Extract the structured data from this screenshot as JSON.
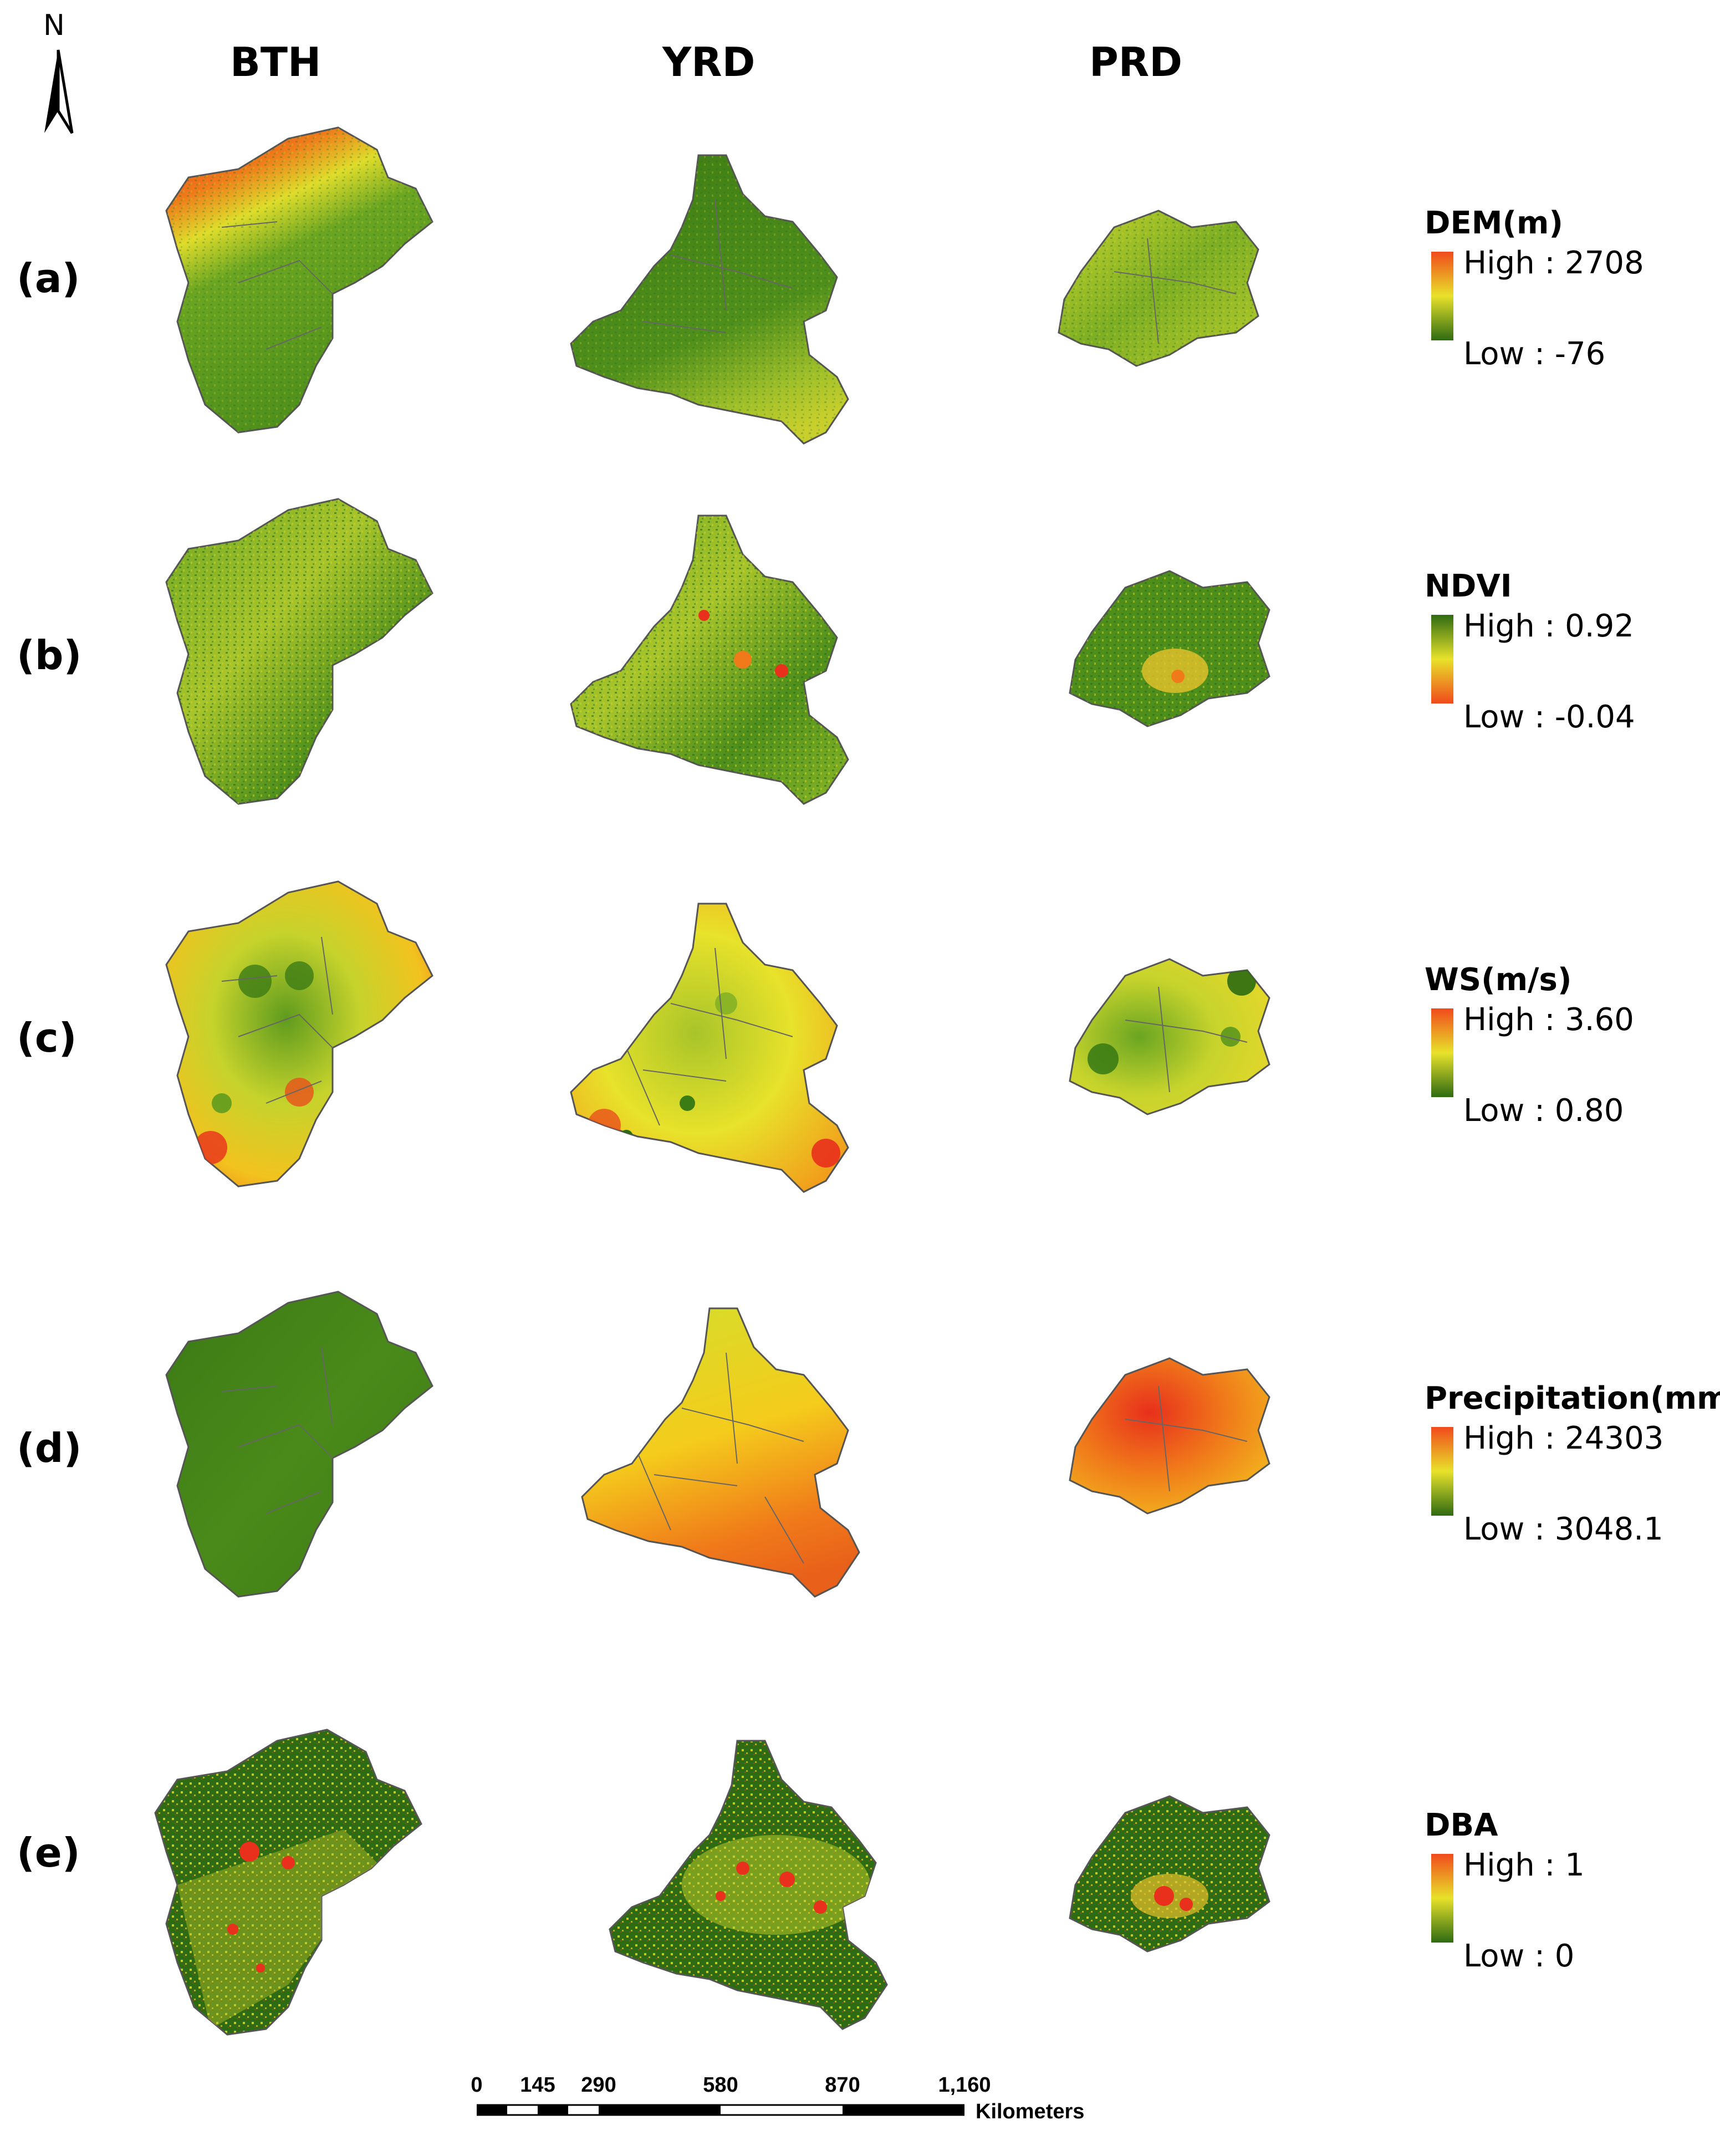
{
  "north_arrow": {
    "letter": "N"
  },
  "columns": [
    "BTH",
    "YRD",
    "PRD"
  ],
  "rows": [
    {
      "label": "(a)",
      "variable": "DEM(m)",
      "high": "High : 2708",
      "low": "Low : -76",
      "ramp": "low-green-high-red"
    },
    {
      "label": "(b)",
      "variable": "NDVI",
      "high": "High : 0.92",
      "low": "Low : -0.04",
      "ramp": "high-green-low-red"
    },
    {
      "label": "(c)",
      "variable": "WS(m/s)",
      "high": "High : 3.60",
      "low": "Low : 0.80",
      "ramp": "low-green-high-red"
    },
    {
      "label": "(d)",
      "variable": "Precipitation(mm)",
      "high": "High : 24303",
      "low": "Low : 3048.1",
      "ramp": "low-green-high-red"
    },
    {
      "label": "(e)",
      "variable": "DBA",
      "high": "High : 1",
      "low": "Low : 0",
      "ramp": "low-green-high-red"
    }
  ],
  "scale_bar": {
    "ticks": [
      "0",
      "145",
      "290",
      "580",
      "870",
      "1,160"
    ],
    "tick_values": [
      0,
      145,
      290,
      580,
      870,
      1160
    ],
    "unit": "Kilometers"
  },
  "colors": {
    "green_dark": "#2e6b12",
    "green": "#4e8f1c",
    "yellow": "#e8e22a",
    "orange": "#f49a1a",
    "red": "#e8301c",
    "boundary": "#555555"
  }
}
